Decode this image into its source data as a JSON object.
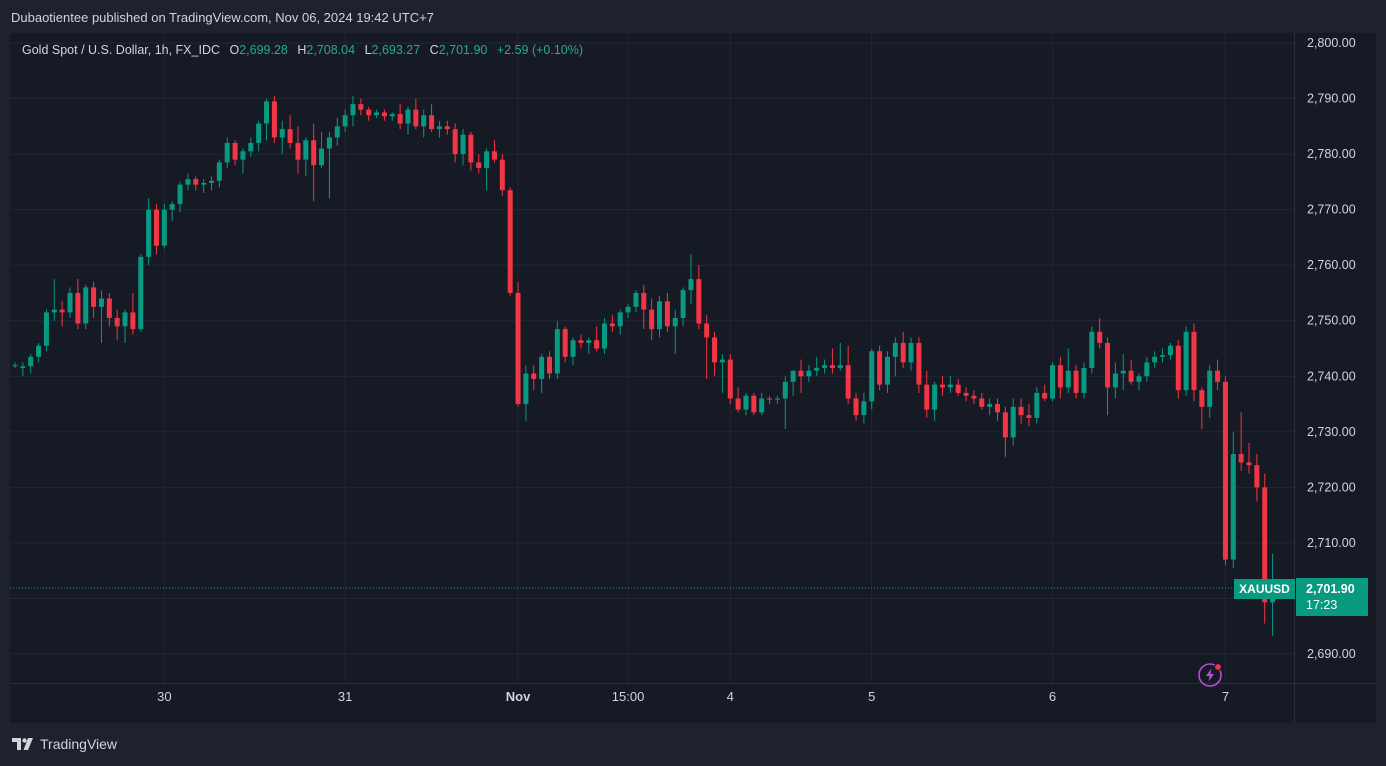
{
  "publish_line": "Dubaotientee published on TradingView.com, Nov 06, 2024 19:42 UTC+7",
  "legend": {
    "instrument": "Gold Spot / U.S. Dollar, 1h, FX_IDC",
    "open_label": "O",
    "open": "2,699.28",
    "high_label": "H",
    "high": "2,708.04",
    "low_label": "L",
    "low": "2,693.27",
    "close_label": "C",
    "close": "2,701.90",
    "change": "+2.59 (+0.10%)"
  },
  "price_tag": {
    "symbol": "XAUUSD",
    "price": "2,701.90",
    "countdown": "17:23"
  },
  "brand": "TradingView",
  "colors": {
    "up": "#089981",
    "down": "#f23645",
    "background": "#161a25",
    "frame": "#1e222d",
    "grid": "#232734",
    "text": "#d1d4dc",
    "accent": "#b84fce"
  },
  "icons": {
    "brand_logo": "tradingview-logo-icon",
    "realtime": "lightning-icon"
  },
  "chart_data": {
    "type": "candlestick",
    "title": "Gold Spot / U.S. Dollar, 1h, FX_IDC",
    "y_ticks": [
      "2,690.00",
      "2,700.00",
      "2,710.00",
      "2,720.00",
      "2,730.00",
      "2,740.00",
      "2,750.00",
      "2,760.00",
      "2,770.00",
      "2,780.00",
      "2,790.00",
      "2,800.00"
    ],
    "ylim": [
      2685,
      2803
    ],
    "x_ticks": [
      {
        "label": "30",
        "bar": 19
      },
      {
        "label": "31",
        "bar": 42
      },
      {
        "label": "Nov",
        "bar": 64
      },
      {
        "label": "15:00",
        "bar": 78
      },
      {
        "label": "4",
        "bar": 91
      },
      {
        "label": "5",
        "bar": 109
      },
      {
        "label": "6",
        "bar": 132
      },
      {
        "label": "7",
        "bar": 154
      }
    ],
    "last_price": 2701.9,
    "grid": true,
    "candles": [
      [
        2742.0,
        2742.5,
        2741.5,
        2742.0
      ],
      [
        2741.5,
        2742.5,
        2740.0,
        2741.8
      ],
      [
        2741.8,
        2744.0,
        2740.5,
        2743.5
      ],
      [
        2743.5,
        2746.0,
        2742.5,
        2745.5
      ],
      [
        2745.5,
        2752.0,
        2744.5,
        2751.5
      ],
      [
        2751.5,
        2757.5,
        2750.0,
        2752.0
      ],
      [
        2752.0,
        2753.5,
        2749.0,
        2751.5
      ],
      [
        2751.5,
        2756.0,
        2750.5,
        2755.0
      ],
      [
        2755.0,
        2757.5,
        2748.5,
        2749.5
      ],
      [
        2749.5,
        2756.5,
        2748.5,
        2756.0
      ],
      [
        2756.0,
        2757.0,
        2750.5,
        2752.5
      ],
      [
        2752.5,
        2755.5,
        2746.0,
        2754.0
      ],
      [
        2754.0,
        2755.0,
        2749.0,
        2750.5
      ],
      [
        2750.5,
        2752.0,
        2746.5,
        2749.0
      ],
      [
        2749.0,
        2752.0,
        2746.0,
        2751.5
      ],
      [
        2751.5,
        2755.0,
        2747.5,
        2748.5
      ],
      [
        2748.5,
        2762.0,
        2748.0,
        2761.5
      ],
      [
        2761.5,
        2772.0,
        2760.0,
        2770.0
      ],
      [
        2770.0,
        2771.0,
        2762.0,
        2763.5
      ],
      [
        2763.5,
        2771.0,
        2763.0,
        2770.0
      ],
      [
        2770.0,
        2771.5,
        2768.0,
        2771.0
      ],
      [
        2771.0,
        2775.0,
        2769.5,
        2774.5
      ],
      [
        2774.5,
        2776.5,
        2773.5,
        2775.5
      ],
      [
        2775.5,
        2776.0,
        2773.5,
        2774.5
      ],
      [
        2774.5,
        2775.5,
        2773.0,
        2774.8
      ],
      [
        2774.8,
        2776.0,
        2773.5,
        2775.2
      ],
      [
        2775.2,
        2779.0,
        2774.0,
        2778.5
      ],
      [
        2778.5,
        2783.0,
        2777.5,
        2782.0
      ],
      [
        2782.0,
        2782.5,
        2778.0,
        2779.0
      ],
      [
        2779.0,
        2781.0,
        2776.5,
        2780.5
      ],
      [
        2780.5,
        2783.0,
        2779.5,
        2782.0
      ],
      [
        2782.0,
        2786.0,
        2780.5,
        2785.5
      ],
      [
        2785.5,
        2790.0,
        2782.5,
        2789.5
      ],
      [
        2789.5,
        2790.5,
        2782.0,
        2783.0
      ],
      [
        2783.0,
        2786.0,
        2780.0,
        2784.5
      ],
      [
        2784.5,
        2787.0,
        2781.0,
        2782.0
      ],
      [
        2782.0,
        2785.0,
        2776.5,
        2779.0
      ],
      [
        2779.0,
        2783.0,
        2776.0,
        2782.5
      ],
      [
        2782.5,
        2785.5,
        2771.5,
        2778.0
      ],
      [
        2778.0,
        2784.0,
        2777.5,
        2781.0
      ],
      [
        2781.0,
        2784.0,
        2772.0,
        2783.0
      ],
      [
        2783.0,
        2786.5,
        2781.5,
        2785.0
      ],
      [
        2785.0,
        2788.0,
        2784.0,
        2787.0
      ],
      [
        2787.0,
        2790.5,
        2785.0,
        2789.0
      ],
      [
        2789.0,
        2790.0,
        2787.0,
        2788.0
      ],
      [
        2788.0,
        2788.5,
        2786.0,
        2787.0
      ],
      [
        2787.0,
        2788.0,
        2786.5,
        2787.5
      ],
      [
        2787.5,
        2788.0,
        2786.0,
        2786.8
      ],
      [
        2786.8,
        2787.5,
        2786.0,
        2787.2
      ],
      [
        2787.2,
        2789.0,
        2784.5,
        2785.5
      ],
      [
        2785.5,
        2788.5,
        2783.5,
        2788.0
      ],
      [
        2788.0,
        2790.0,
        2784.5,
        2785.0
      ],
      [
        2785.0,
        2788.0,
        2783.0,
        2787.0
      ],
      [
        2787.0,
        2789.0,
        2784.0,
        2784.5
      ],
      [
        2784.5,
        2786.0,
        2783.0,
        2785.0
      ],
      [
        2785.0,
        2786.0,
        2783.5,
        2784.5
      ],
      [
        2784.5,
        2785.5,
        2778.5,
        2780.0
      ],
      [
        2780.0,
        2784.5,
        2778.0,
        2783.5
      ],
      [
        2783.5,
        2784.0,
        2777.0,
        2778.5
      ],
      [
        2778.5,
        2780.0,
        2776.5,
        2777.5
      ],
      [
        2777.5,
        2781.0,
        2773.5,
        2780.5
      ],
      [
        2780.5,
        2782.5,
        2778.5,
        2779.0
      ],
      [
        2779.0,
        2780.0,
        2772.5,
        2773.5
      ],
      [
        2773.5,
        2774.0,
        2754.5,
        2755.0
      ],
      [
        2755.0,
        2757.0,
        2734.5,
        2735.0
      ],
      [
        2735.0,
        2742.0,
        2732.0,
        2740.5
      ],
      [
        2740.5,
        2742.0,
        2737.5,
        2739.5
      ],
      [
        2739.5,
        2744.0,
        2737.0,
        2743.5
      ],
      [
        2743.5,
        2744.5,
        2739.5,
        2740.5
      ],
      [
        2740.5,
        2750.0,
        2739.5,
        2748.5
      ],
      [
        2748.5,
        2749.0,
        2742.5,
        2743.5
      ],
      [
        2743.5,
        2747.0,
        2742.0,
        2746.5
      ],
      [
        2746.5,
        2747.5,
        2745.0,
        2746.0
      ],
      [
        2746.0,
        2747.0,
        2744.0,
        2746.5
      ],
      [
        2746.5,
        2749.0,
        2744.5,
        2745.0
      ],
      [
        2745.0,
        2750.5,
        2744.0,
        2749.5
      ],
      [
        2749.5,
        2751.0,
        2748.0,
        2749.0
      ],
      [
        2749.0,
        2752.0,
        2747.5,
        2751.5
      ],
      [
        2751.5,
        2753.0,
        2750.5,
        2752.5
      ],
      [
        2752.5,
        2755.5,
        2751.5,
        2755.0
      ],
      [
        2755.0,
        2756.5,
        2748.5,
        2752.0
      ],
      [
        2752.0,
        2754.0,
        2746.5,
        2748.5
      ],
      [
        2748.5,
        2754.5,
        2747.0,
        2753.5
      ],
      [
        2753.5,
        2755.0,
        2748.0,
        2749.0
      ],
      [
        2749.0,
        2752.0,
        2744.0,
        2750.5
      ],
      [
        2750.5,
        2756.0,
        2749.0,
        2755.5
      ],
      [
        2755.5,
        2762.0,
        2753.0,
        2757.5
      ],
      [
        2757.5,
        2760.0,
        2748.5,
        2749.5
      ],
      [
        2749.5,
        2751.0,
        2739.5,
        2747.0
      ],
      [
        2747.0,
        2748.0,
        2740.0,
        2742.5
      ],
      [
        2742.5,
        2744.0,
        2737.0,
        2743.0
      ],
      [
        2743.0,
        2744.0,
        2735.0,
        2736.0
      ],
      [
        2736.0,
        2738.0,
        2733.5,
        2734.0
      ],
      [
        2734.0,
        2737.0,
        2733.0,
        2736.5
      ],
      [
        2736.5,
        2737.0,
        2733.0,
        2733.5
      ],
      [
        2733.5,
        2737.0,
        2733.0,
        2736.0
      ],
      [
        2736.0,
        2736.5,
        2735.0,
        2735.8
      ],
      [
        2735.8,
        2736.5,
        2735.0,
        2736.0
      ],
      [
        2736.0,
        2740.0,
        2730.5,
        2739.0
      ],
      [
        2739.0,
        2741.0,
        2736.5,
        2741.0
      ],
      [
        2741.0,
        2743.0,
        2737.0,
        2740.0
      ],
      [
        2740.0,
        2742.0,
        2739.0,
        2741.0
      ],
      [
        2741.0,
        2743.5,
        2740.0,
        2741.5
      ],
      [
        2741.5,
        2743.0,
        2740.5,
        2742.0
      ],
      [
        2742.0,
        2745.0,
        2740.5,
        2741.5
      ],
      [
        2741.5,
        2746.0,
        2741.0,
        2742.0
      ],
      [
        2742.0,
        2745.5,
        2735.0,
        2736.0
      ],
      [
        2736.0,
        2737.0,
        2732.0,
        2733.0
      ],
      [
        2733.0,
        2737.0,
        2731.5,
        2735.5
      ],
      [
        2735.5,
        2745.0,
        2734.0,
        2744.5
      ],
      [
        2744.5,
        2745.5,
        2737.5,
        2738.5
      ],
      [
        2738.5,
        2744.5,
        2737.0,
        2743.5
      ],
      [
        2743.5,
        2747.0,
        2740.0,
        2746.0
      ],
      [
        2746.0,
        2748.0,
        2741.5,
        2742.5
      ],
      [
        2742.5,
        2747.0,
        2741.0,
        2746.0
      ],
      [
        2746.0,
        2747.0,
        2737.0,
        2738.5
      ],
      [
        2738.5,
        2741.0,
        2732.5,
        2734.0
      ],
      [
        2734.0,
        2739.0,
        2732.0,
        2738.5
      ],
      [
        2738.5,
        2740.0,
        2736.5,
        2738.0
      ],
      [
        2738.0,
        2740.0,
        2737.0,
        2738.5
      ],
      [
        2738.5,
        2739.5,
        2736.5,
        2737.0
      ],
      [
        2737.0,
        2738.0,
        2735.5,
        2736.5
      ],
      [
        2736.5,
        2737.5,
        2735.0,
        2736.0
      ],
      [
        2736.0,
        2737.0,
        2734.0,
        2734.5
      ],
      [
        2734.5,
        2736.0,
        2733.0,
        2735.0
      ],
      [
        2735.0,
        2736.0,
        2732.0,
        2733.5
      ],
      [
        2733.5,
        2734.5,
        2725.5,
        2729.0
      ],
      [
        2729.0,
        2736.0,
        2727.5,
        2734.5
      ],
      [
        2734.5,
        2736.0,
        2731.5,
        2733.0
      ],
      [
        2733.0,
        2735.0,
        2731.0,
        2732.5
      ],
      [
        2732.5,
        2738.0,
        2731.5,
        2737.0
      ],
      [
        2737.0,
        2738.5,
        2735.5,
        2736.0
      ],
      [
        2736.0,
        2742.5,
        2735.5,
        2742.0
      ],
      [
        2742.0,
        2743.5,
        2736.0,
        2738.0
      ],
      [
        2738.0,
        2745.0,
        2737.0,
        2741.0
      ],
      [
        2741.0,
        2742.0,
        2736.0,
        2737.0
      ],
      [
        2737.0,
        2742.5,
        2736.0,
        2741.5
      ],
      [
        2741.5,
        2749.0,
        2740.5,
        2748.0
      ],
      [
        2748.0,
        2750.5,
        2745.0,
        2746.0
      ],
      [
        2746.0,
        2747.0,
        2733.0,
        2738.0
      ],
      [
        2738.0,
        2742.5,
        2736.0,
        2740.5
      ],
      [
        2740.5,
        2744.0,
        2737.5,
        2741.0
      ],
      [
        2741.0,
        2743.0,
        2738.5,
        2739.0
      ],
      [
        2739.0,
        2740.5,
        2737.5,
        2740.0
      ],
      [
        2740.0,
        2743.5,
        2739.0,
        2742.5
      ],
      [
        2742.5,
        2744.5,
        2741.5,
        2743.5
      ],
      [
        2743.5,
        2745.0,
        2742.5,
        2743.8
      ],
      [
        2743.8,
        2746.0,
        2743.0,
        2745.5
      ],
      [
        2745.5,
        2746.5,
        2736.0,
        2737.5
      ],
      [
        2737.5,
        2749.0,
        2736.5,
        2748.0
      ],
      [
        2748.0,
        2749.5,
        2735.5,
        2737.5
      ],
      [
        2737.5,
        2738.0,
        2730.5,
        2734.5
      ],
      [
        2734.5,
        2742.0,
        2732.5,
        2741.0
      ],
      [
        2741.0,
        2743.0,
        2737.5,
        2739.0
      ],
      [
        2739.0,
        2740.0,
        2706.0,
        2707.0
      ],
      [
        2707.0,
        2730.0,
        2705.5,
        2726.0
      ],
      [
        2726.0,
        2733.5,
        2723.0,
        2724.5
      ],
      [
        2724.5,
        2728.0,
        2722.5,
        2724.0
      ],
      [
        2724.0,
        2726.0,
        2717.5,
        2720.0
      ],
      [
        2720.0,
        2722.5,
        2695.5,
        2699.3
      ],
      [
        2699.3,
        2708.04,
        2693.27,
        2701.9
      ]
    ]
  }
}
